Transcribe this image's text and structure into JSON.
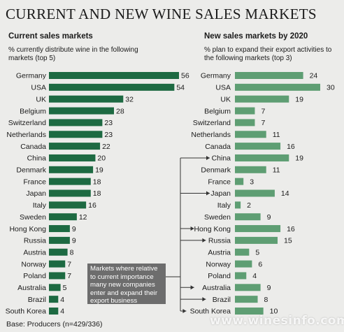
{
  "title": "CURRENT AND NEW WINE SALES MARKETS",
  "footnote": "Base: Producers (n=429/336)",
  "callout": "Markets where relative to current importance many new companies enter and expand their export business",
  "watermark": "www.winesinfo.com",
  "colors": {
    "current_bar": "#1d6a42",
    "new_bar": "#5e9e73",
    "callout_bg": "#6d6d6d",
    "background": "#ececea"
  },
  "chart_data": [
    {
      "type": "bar",
      "orientation": "horizontal",
      "title": "Current sales markets",
      "subtitle": "% currently distribute wine in the following markets (top 5)",
      "categories": [
        "Germany",
        "USA",
        "UK",
        "Belgium",
        "Switzerland",
        "Netherlands",
        "Canada",
        "China",
        "Denmark",
        "France",
        "Japan",
        "Italy",
        "Sweden",
        "Hong Kong",
        "Russia",
        "Austria",
        "Norway",
        "Poland",
        "Australia",
        "Brazil",
        "South Korea"
      ],
      "values": [
        56,
        54,
        32,
        28,
        23,
        23,
        22,
        20,
        19,
        18,
        18,
        16,
        12,
        9,
        9,
        8,
        7,
        7,
        5,
        4,
        4
      ],
      "grid": false
    },
    {
      "type": "bar",
      "orientation": "horizontal",
      "title": "New sales markets by 2020",
      "subtitle": "% plan to expand their export activities to the following markets (top 3)",
      "categories": [
        "Germany",
        "USA",
        "UK",
        "Belgium",
        "Switzerland",
        "Netherlands",
        "Canada",
        "China",
        "Denmark",
        "France",
        "Japan",
        "Italy",
        "Sweden",
        "Hong Kong",
        "Russia",
        "Austria",
        "Norway",
        "Poland",
        "Australia",
        "Brazil",
        "South Korea"
      ],
      "values": [
        24,
        30,
        19,
        7,
        7,
        11,
        16,
        19,
        11,
        3,
        14,
        2,
        9,
        16,
        15,
        5,
        6,
        4,
        9,
        8,
        10
      ],
      "highlighted": [
        "China",
        "Japan",
        "Hong Kong",
        "Russia",
        "Australia",
        "Brazil",
        "South Korea"
      ],
      "grid": false
    }
  ]
}
